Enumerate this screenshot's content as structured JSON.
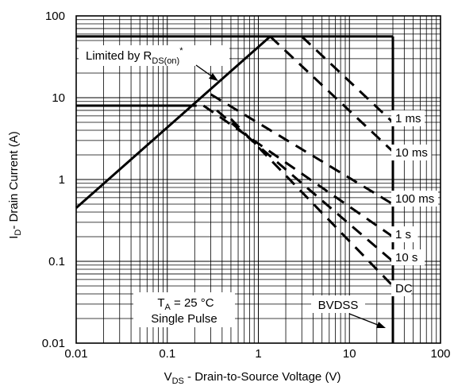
{
  "chart_data": {
    "type": "line",
    "xscale": "log",
    "yscale": "log",
    "xlim": [
      0.01,
      100
    ],
    "ylim": [
      0.01,
      100
    ],
    "x_ticks": [
      "0.01",
      "0.1",
      "1",
      "10",
      "100"
    ],
    "y_ticks": [
      "0.01",
      "0.1",
      "1",
      "10",
      "100"
    ],
    "xlabel": {
      "main": "V",
      "sub": "DS",
      "rest": " - Drain-to-Source Voltage (V)"
    },
    "ylabel": {
      "main": "I",
      "sub": "D",
      "rest": "- Drain Current (A)"
    },
    "grid": true,
    "limit_label": {
      "text": "Limited by R",
      "sub": "DS(on)",
      "sup": "*"
    },
    "conditions": {
      "line1_main": "T",
      "line1_sub": "A",
      "line1_rest": " = 25 °C",
      "line2": "Single Pulse"
    },
    "bvdss_label": "BVDSS",
    "series": [
      {
        "name": "Limited by RDS(on)",
        "style": "solid",
        "x": [
          0.01,
          1.35
        ],
        "y": [
          0.45,
          56
        ]
      },
      {
        "name": "1 ms",
        "style": "dashed",
        "x": [
          3,
          30
        ],
        "y": [
          56,
          5
        ]
      },
      {
        "name": "10 ms",
        "style": "dashed",
        "x": [
          1.35,
          30
        ],
        "y": [
          56,
          2.2
        ]
      },
      {
        "name": "100 ms",
        "style": "dashed",
        "x": [
          0.3,
          30
        ],
        "y": [
          11,
          0.5
        ]
      },
      {
        "name": "1 s",
        "style": "dashed",
        "x": [
          0.25,
          30
        ],
        "y": [
          8,
          0.2
        ]
      },
      {
        "name": "10 s",
        "style": "dashed",
        "x": [
          0.35,
          30
        ],
        "y": [
          7,
          0.1
        ]
      },
      {
        "name": "DC",
        "style": "dashed",
        "x": [
          0.5,
          30
        ],
        "y": [
          5.5,
          0.05
        ]
      }
    ],
    "limit_lines": {
      "id_max_pulse": 56,
      "id_max_dc": 8,
      "bvdss_v": 30
    },
    "series_labels": [
      "1 ms",
      "10 ms",
      "100 ms",
      "1 s",
      "10 s",
      "DC"
    ]
  }
}
